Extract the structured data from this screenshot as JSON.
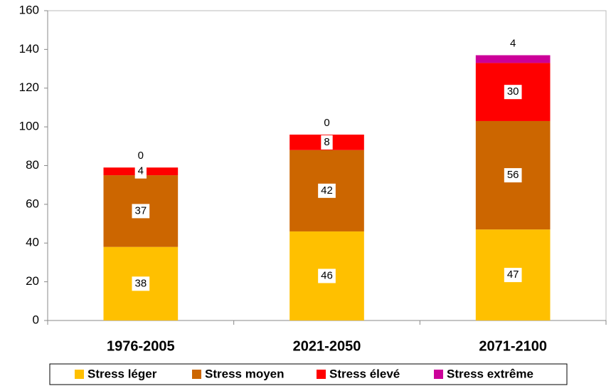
{
  "chart_data": {
    "type": "stacked-bar",
    "categories": [
      "1976-2005",
      "2021-2050",
      "2071-2100"
    ],
    "series": [
      {
        "name": "Stress léger",
        "color": "#FFC000",
        "values": [
          38,
          46,
          47
        ]
      },
      {
        "name": "Stress moyen",
        "color": "#CC6600",
        "values": [
          37,
          42,
          56
        ]
      },
      {
        "name": "Stress élevé",
        "color": "#FF0000",
        "values": [
          4,
          8,
          30
        ]
      },
      {
        "name": "Stress extrême",
        "color": "#CC0099",
        "values": [
          0,
          0,
          4
        ]
      }
    ],
    "ylim": [
      0,
      160
    ],
    "yticks": [
      0,
      20,
      40,
      60,
      80,
      100,
      120,
      140,
      160
    ],
    "legend": "bottom"
  }
}
